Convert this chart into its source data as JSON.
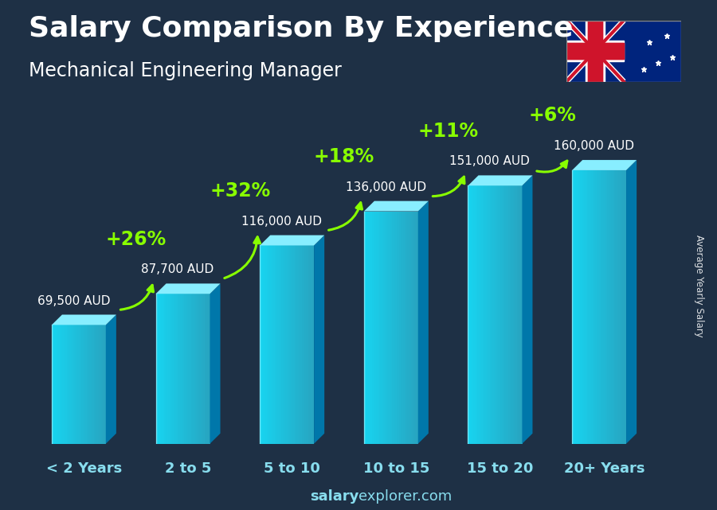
{
  "title": "Salary Comparison By Experience",
  "subtitle": "Mechanical Engineering Manager",
  "categories": [
    "< 2 Years",
    "2 to 5",
    "5 to 10",
    "10 to 15",
    "15 to 20",
    "20+ Years"
  ],
  "values": [
    69500,
    87700,
    116000,
    136000,
    151000,
    160000
  ],
  "value_labels": [
    "69,500 AUD",
    "87,700 AUD",
    "116,000 AUD",
    "136,000 AUD",
    "151,000 AUD",
    "160,000 AUD"
  ],
  "pct_changes": [
    "+26%",
    "+32%",
    "+18%",
    "+11%",
    "+6%"
  ],
  "bar_face_left": "#1ad4f0",
  "bar_face_right": "#0aa8cc",
  "bar_top": "#7aeeff",
  "bar_side": "#0077aa",
  "ylabel": "Average Yearly Salary",
  "website_bold": "salary",
  "website_normal": "explorer.com",
  "bg_dark": "#1e3045",
  "text_color": "#ffffff",
  "label_color": "#ffffff",
  "pct_color": "#88ff00",
  "arrow_color": "#88ff00",
  "title_fontsize": 26,
  "subtitle_fontsize": 17,
  "cat_fontsize": 13,
  "val_fontsize": 11,
  "pct_fontsize": 17,
  "website_fontsize": 13
}
